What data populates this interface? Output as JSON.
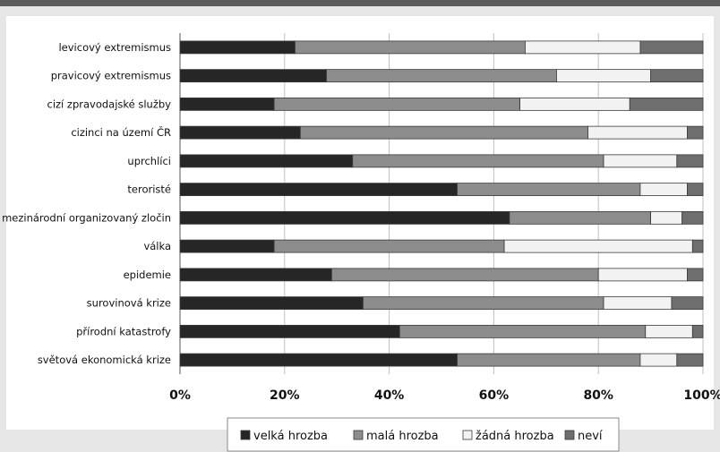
{
  "chart_data": {
    "type": "bar",
    "orientation": "horizontal",
    "stacked": true,
    "categories": [
      "levicový extremismus",
      "pravicový extremismus",
      "cizí zpravodajské služby",
      "cizinci na území ČR",
      "uprchlíci",
      "teroristé",
      "mezinárodní organizovaný zločin",
      "válka",
      "epidemie",
      "surovinová krize",
      "přírodní katastrofy",
      "světová ekonomická krize"
    ],
    "series": [
      {
        "name": "velká hrozba",
        "color": "#262626",
        "values": [
          22,
          28,
          18,
          23,
          33,
          53,
          63,
          18,
          29,
          35,
          42,
          53
        ]
      },
      {
        "name": "malá hrozba",
        "color": "#8c8c8c",
        "values": [
          44,
          44,
          47,
          55,
          48,
          35,
          27,
          44,
          51,
          46,
          47,
          35
        ]
      },
      {
        "name": "žádná hrozba",
        "color": "#f2f2f2",
        "values": [
          22,
          18,
          21,
          19,
          14,
          9,
          6,
          36,
          17,
          13,
          9,
          7
        ]
      },
      {
        "name": "neví",
        "color": "#6e6e6e",
        "values": [
          12,
          10,
          14,
          3,
          5,
          3,
          4,
          2,
          3,
          6,
          2,
          5
        ]
      }
    ],
    "x_ticks": [
      "0%",
      "20%",
      "40%",
      "60%",
      "80%",
      "100%"
    ],
    "xlim": [
      0,
      100
    ],
    "grid": "vertical",
    "legend_position": "bottom"
  }
}
